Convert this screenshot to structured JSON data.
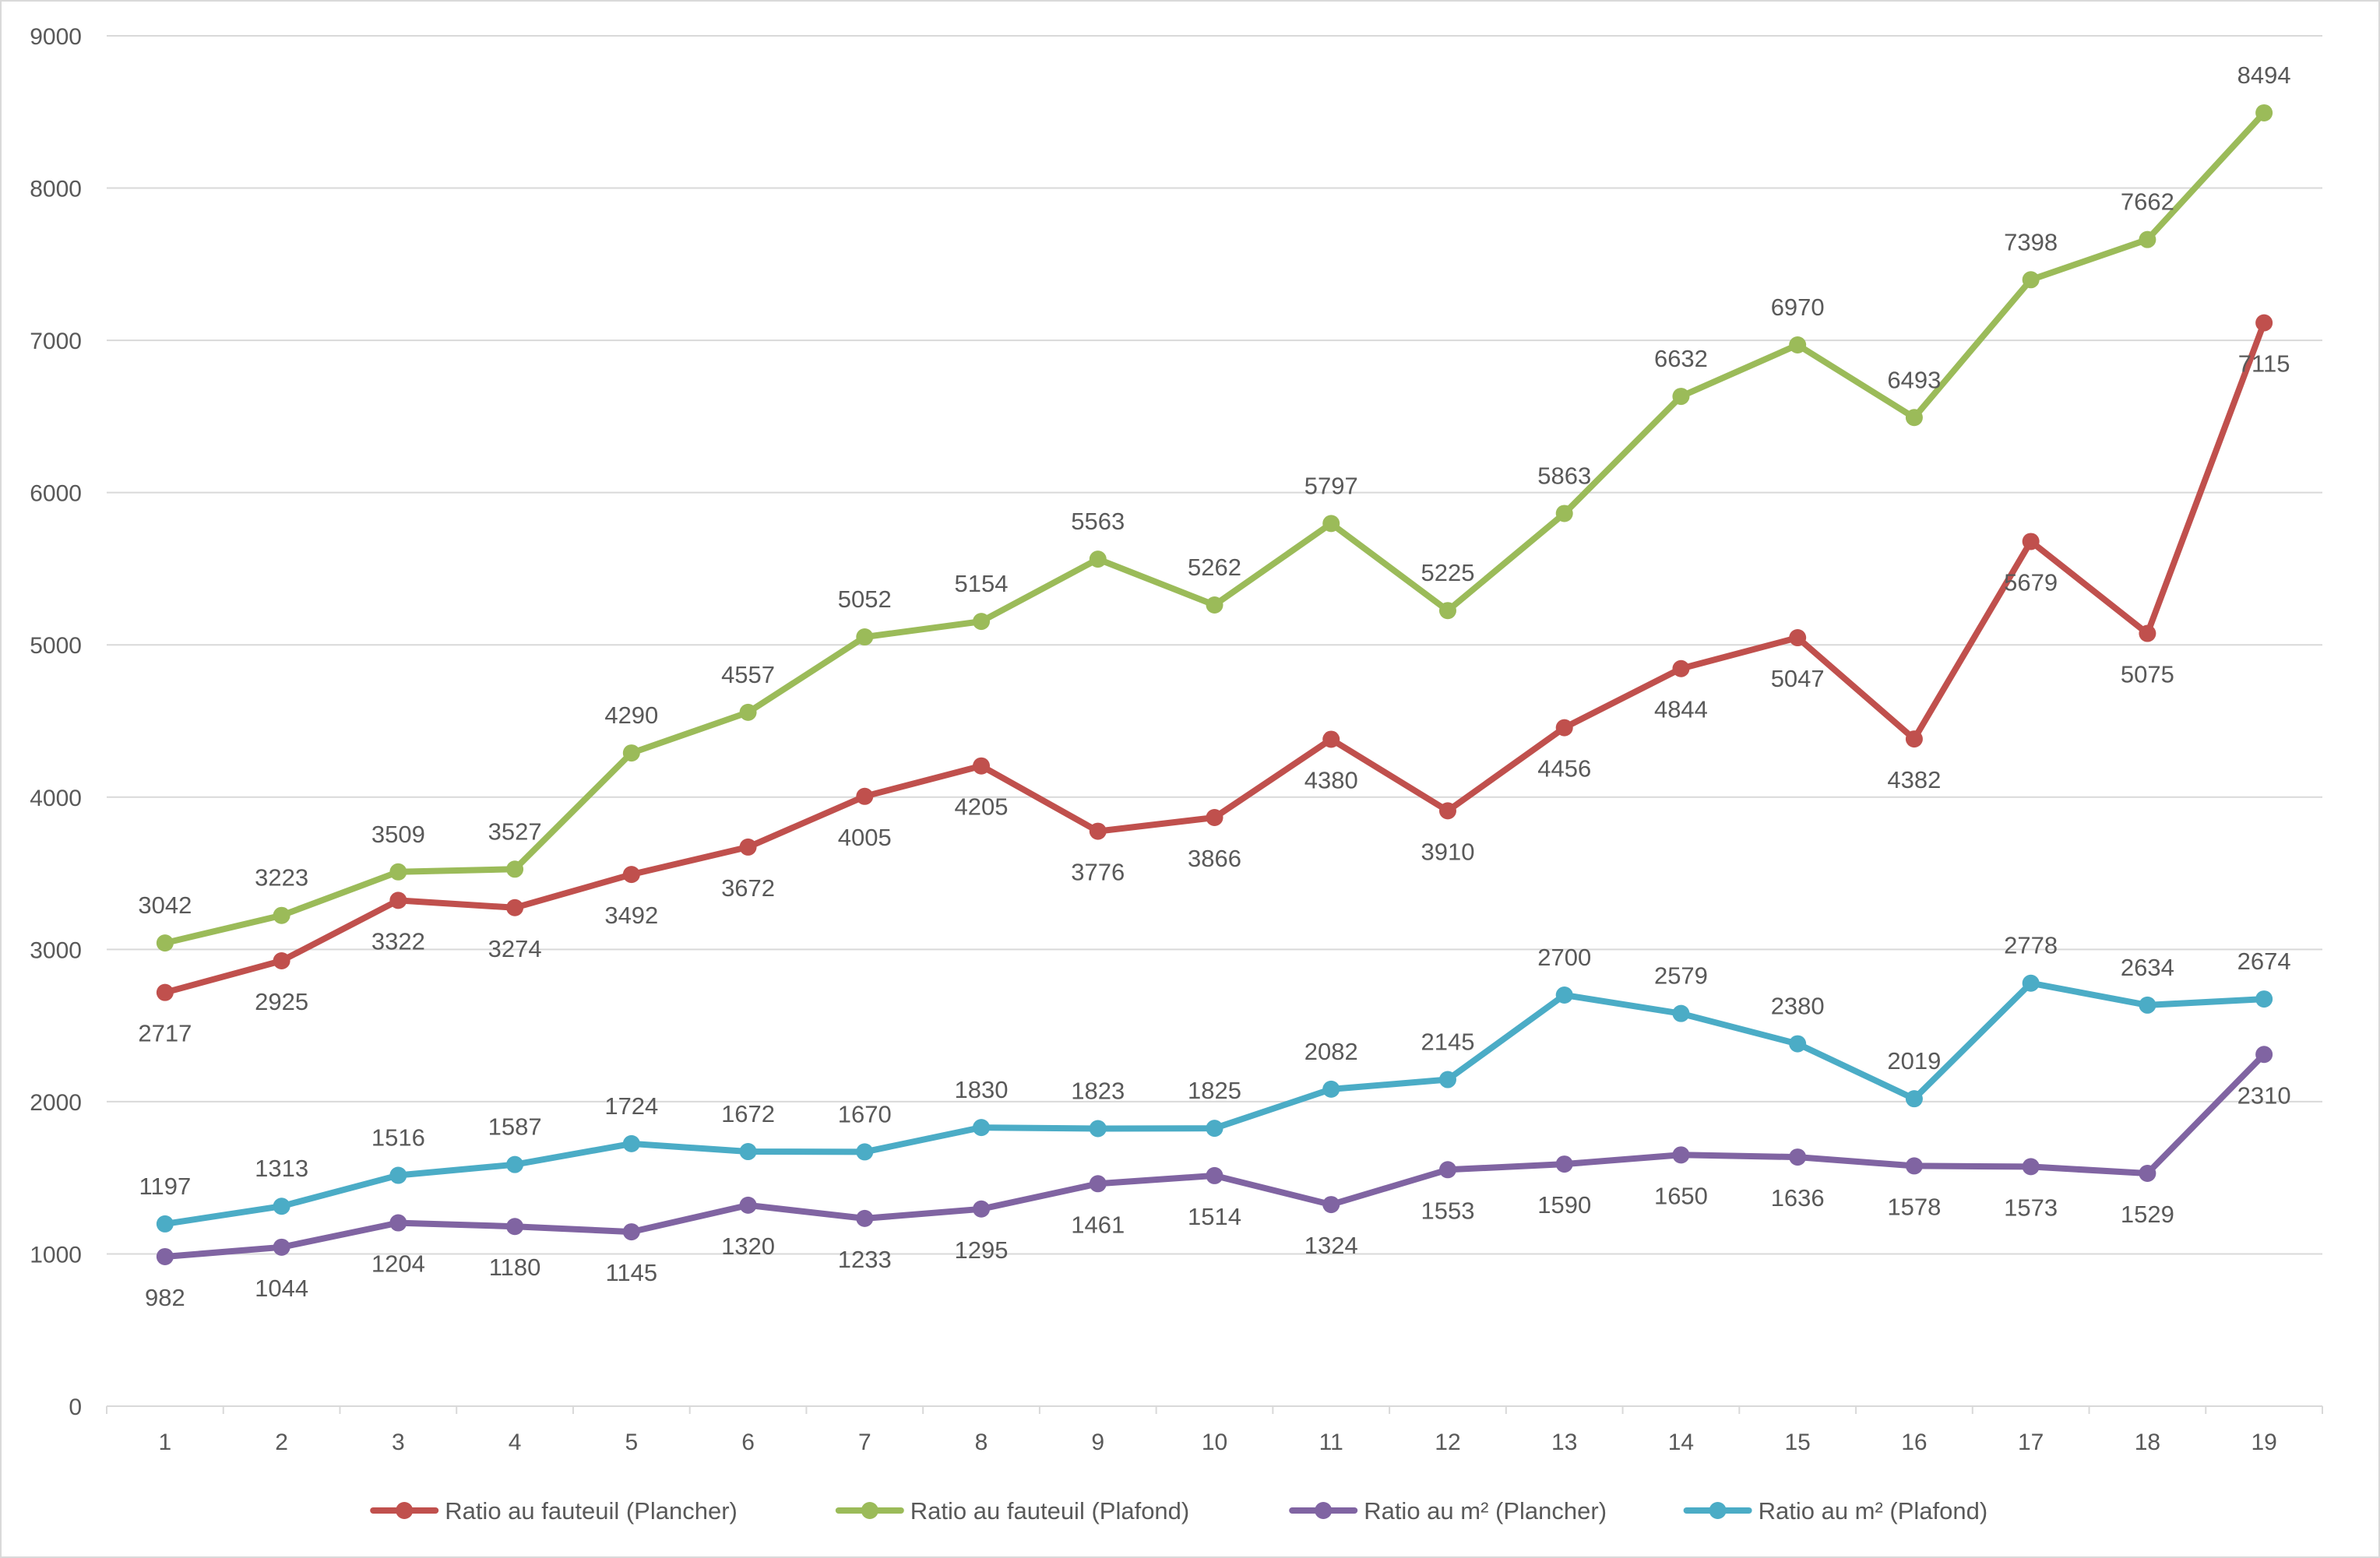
{
  "chart_data": {
    "type": "line",
    "title": "",
    "xlabel": "",
    "ylabel": "",
    "ylim": [
      0,
      9000
    ],
    "yticks": [
      0,
      1000,
      2000,
      3000,
      4000,
      5000,
      6000,
      7000,
      8000,
      9000
    ],
    "grid": true,
    "legend_position": "bottom",
    "categories": [
      "1",
      "2",
      "3",
      "4",
      "5",
      "6",
      "7",
      "8",
      "9",
      "10",
      "11",
      "12",
      "13",
      "14",
      "15",
      "16",
      "17",
      "18",
      "19"
    ],
    "series": [
      {
        "name": "Ratio au fauteuil (Plancher)",
        "color": "#c0504d",
        "label_position": "below",
        "values": [
          2717,
          2925,
          3322,
          3274,
          3492,
          3672,
          4005,
          4205,
          3776,
          3866,
          4380,
          3910,
          4456,
          4844,
          5047,
          4382,
          5679,
          5075,
          7115
        ]
      },
      {
        "name": "Ratio au fauteuil (Plafond)",
        "color": "#9bbb59",
        "label_position": "above",
        "values": [
          3042,
          3223,
          3509,
          3527,
          4290,
          4557,
          5052,
          5154,
          5563,
          5262,
          5797,
          5225,
          5863,
          6632,
          6970,
          6493,
          7398,
          7662,
          8494
        ]
      },
      {
        "name": "Ratio au m² (Plancher)",
        "color": "#8064a2",
        "label_position": "below",
        "values": [
          982,
          1044,
          1204,
          1180,
          1145,
          1320,
          1233,
          1295,
          1461,
          1514,
          1324,
          1553,
          1590,
          1650,
          1636,
          1578,
          1573,
          1529,
          2310
        ]
      },
      {
        "name": "Ratio au m² (Plafond)",
        "color": "#4bacc6",
        "label_position": "above",
        "values": [
          1197,
          1313,
          1516,
          1587,
          1724,
          1672,
          1670,
          1830,
          1823,
          1825,
          2082,
          2145,
          2700,
          2579,
          2380,
          2019,
          2778,
          2634,
          2674
        ]
      }
    ]
  }
}
